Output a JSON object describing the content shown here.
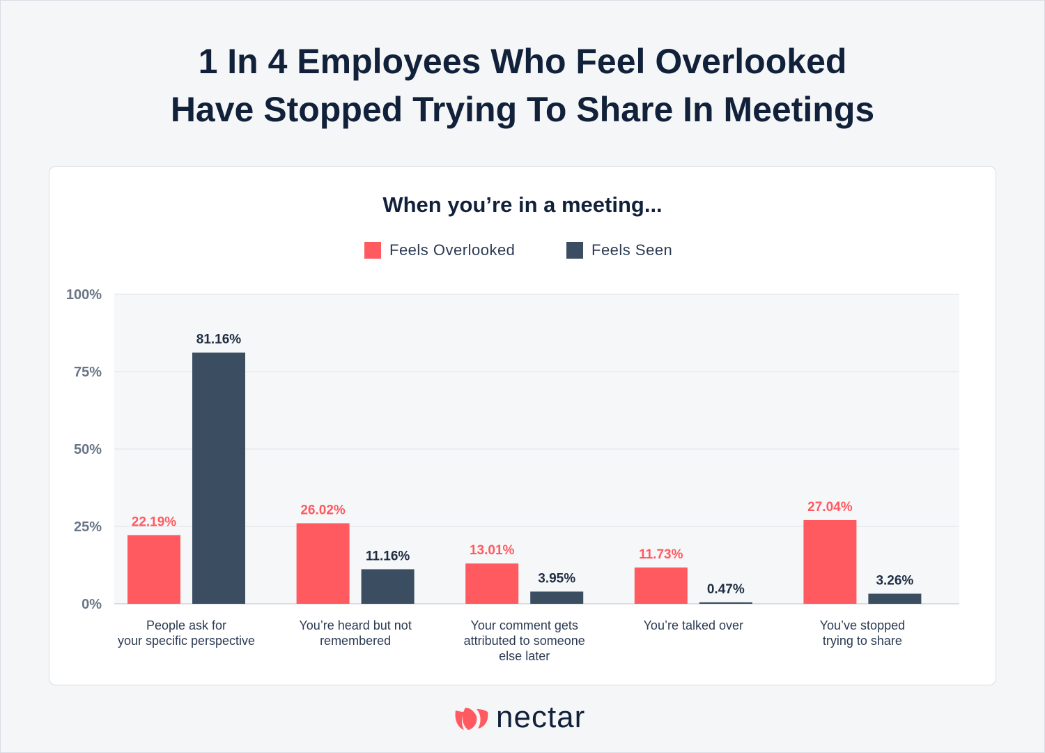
{
  "title_lines": [
    "1 In 4 Employees Who Feel Overlooked",
    "Have Stopped Trying To Share In Meetings"
  ],
  "brand": {
    "name": "nectar",
    "icon": "nectar-leaf-icon",
    "color": "#ff5a5f"
  },
  "colors": {
    "overlooked": "#ff5a5f",
    "seen": "#3b4d61",
    "plot_bg": "#f6f7f9",
    "grid": "#dfe3e8"
  },
  "chart_data": {
    "type": "bar",
    "title": "When you’re in a meeting...",
    "legend": "top-center",
    "grid": true,
    "ylim": [
      0,
      100
    ],
    "yticks": [
      "0%",
      "25%",
      "50%",
      "75%",
      "100%"
    ],
    "ytick_values": [
      0,
      25,
      50,
      75,
      100
    ],
    "categories": [
      [
        "People ask for",
        "your specific perspective"
      ],
      [
        "You’re heard but not",
        "remembered"
      ],
      [
        "Your comment gets",
        "attributed to someone",
        "else later"
      ],
      [
        "You’re talked over"
      ],
      [
        "You’ve stopped",
        "trying to share"
      ]
    ],
    "series": [
      {
        "name": "Feels Overlooked",
        "values": [
          22.19,
          26.02,
          13.01,
          11.73,
          27.04
        ],
        "labels": [
          "22.19%",
          "26.02%",
          "13.01%",
          "11.73%",
          "27.04%"
        ]
      },
      {
        "name": "Feels Seen",
        "values": [
          81.16,
          11.16,
          3.95,
          0.47,
          3.26
        ],
        "labels": [
          "81.16%",
          "11.16%",
          "3.95%",
          "0.47%",
          "3.26%"
        ]
      }
    ]
  }
}
